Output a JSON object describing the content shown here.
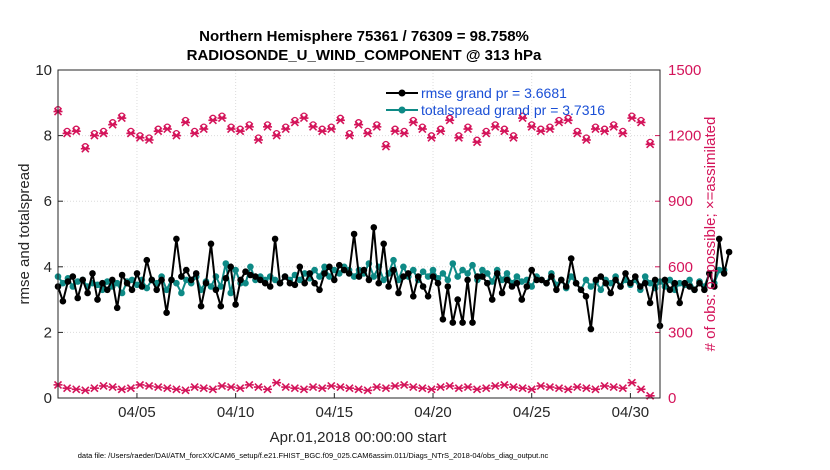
{
  "chart_data": {
    "type": "line",
    "title_line1": "Northern Hemisphere 75361 / 76309 = 98.758%",
    "title_line2": "RADIOSONDE_U_WIND_COMPONENT @ 313 hPa",
    "xlabel": "Apr.01,2018 00:00:00 start",
    "ylabel_left": "rmse and totalspread",
    "ylabel_right": "# of obs: o=possible; ×=assimilated",
    "x_ticks": [
      {
        "day": 5,
        "label": "04/05"
      },
      {
        "day": 10,
        "label": "04/10"
      },
      {
        "day": 15,
        "label": "04/15"
      },
      {
        "day": 20,
        "label": "04/20"
      },
      {
        "day": 25,
        "label": "04/25"
      },
      {
        "day": 30,
        "label": "04/30"
      }
    ],
    "xlim": [
      1,
      31.5
    ],
    "ylim_left": [
      0,
      10
    ],
    "yticks_left": [
      "0",
      "2",
      "4",
      "6",
      "8",
      "10"
    ],
    "ylim_right": [
      0,
      1500
    ],
    "yticks_right": [
      "0",
      "300",
      "600",
      "900",
      "1200",
      "1500"
    ],
    "footer": "data file: /Users/raeder/DAI/ATM_forcXX/CAM6_setup/f.e21.FHIST_BGC.f09_025.CAM6assim.011/Diags_NTrS_2018-04/obs_diag_output.nc",
    "colors": {
      "rmse": "#000000",
      "spread": "#0e8a86",
      "obs": "#d4145a",
      "legend_text": "#1a4fd6"
    },
    "series": [
      {
        "name": "rmse",
        "legend": "rmse grand pr = 3.6681",
        "color": "#000000",
        "values": [
          3.4,
          2.95,
          3.55,
          3.7,
          3.05,
          3.6,
          3.2,
          3.8,
          3.0,
          3.5,
          3.3,
          3.6,
          2.75,
          3.75,
          3.5,
          3.3,
          3.8,
          3.4,
          4.2,
          3.6,
          3.3,
          3.6,
          2.6,
          3.6,
          4.85,
          3.7,
          3.9,
          3.6,
          3.8,
          2.8,
          3.5,
          4.7,
          3.3,
          2.8,
          3.65,
          4.0,
          2.85,
          3.6,
          3.85,
          3.75,
          3.7,
          3.6,
          3.5,
          3.4,
          4.85,
          3.5,
          3.7,
          3.5,
          3.45,
          4.0,
          3.5,
          3.8,
          3.5,
          3.3,
          3.8,
          4.0,
          3.6,
          4.05,
          3.9,
          3.8,
          5.0,
          3.7,
          3.9,
          3.6,
          5.2,
          3.5,
          4.7,
          3.4,
          3.9,
          3.2,
          3.7,
          3.8,
          3.1,
          3.7,
          3.4,
          3.1,
          3.7,
          3.5,
          2.4,
          3.4,
          2.3,
          3.0,
          2.3,
          3.6,
          2.3,
          3.7,
          3.7,
          3.5,
          3.0,
          3.8,
          3.2,
          3.6,
          3.4,
          3.5,
          3.0,
          3.4,
          3.9,
          3.6,
          3.6,
          3.5,
          3.7,
          3.3,
          3.6,
          3.4,
          4.25,
          3.5,
          3.3,
          3.1,
          2.1,
          3.6,
          3.7,
          3.5,
          3.2,
          3.6,
          3.4,
          3.8,
          3.5,
          3.7,
          3.4,
          3.5,
          2.9,
          3.6,
          2.2,
          3.6,
          3.3,
          3.5,
          2.9,
          3.5,
          3.4,
          3.3,
          3.5,
          3.3,
          3.8,
          3.4,
          4.85,
          3.8,
          4.45
        ]
      },
      {
        "name": "totalspread",
        "legend": "totalspread grand pr = 3.7316",
        "color": "#0e8a86",
        "values": [
          3.7,
          3.5,
          3.65,
          3.4,
          3.55,
          3.6,
          3.4,
          3.5,
          3.45,
          3.3,
          3.55,
          3.4,
          3.5,
          3.2,
          3.55,
          3.6,
          3.45,
          3.6,
          3.35,
          3.6,
          3.5,
          3.7,
          3.3,
          3.6,
          3.5,
          3.2,
          3.6,
          3.5,
          3.7,
          3.3,
          3.55,
          3.4,
          3.7,
          3.4,
          4.1,
          3.2,
          3.9,
          3.5,
          3.5,
          4.0,
          3.6,
          3.7,
          3.6,
          3.7,
          3.6,
          3.5,
          3.7,
          3.6,
          3.75,
          3.6,
          3.8,
          3.65,
          3.9,
          3.7,
          4.0,
          3.7,
          3.9,
          3.8,
          4.0,
          3.9,
          3.7,
          3.9,
          3.8,
          4.1,
          3.7,
          4.0,
          3.6,
          3.8,
          4.2,
          3.6,
          4.0,
          3.7,
          3.9,
          3.6,
          3.85,
          3.7,
          3.9,
          3.65,
          3.8,
          3.6,
          4.1,
          3.7,
          3.9,
          3.8,
          4.05,
          3.6,
          3.9,
          3.8,
          3.55,
          3.9,
          3.6,
          3.8,
          3.5,
          3.7,
          3.55,
          3.6,
          3.4,
          3.7,
          3.6,
          3.5,
          3.8,
          3.45,
          3.6,
          3.35,
          3.7,
          3.5,
          3.3,
          3.6,
          3.4,
          3.55,
          3.3,
          3.6,
          3.5,
          3.7,
          3.4,
          3.6,
          3.45,
          3.6,
          3.3,
          3.7,
          3.5,
          3.35,
          3.55,
          3.4,
          3.6,
          3.3,
          3.5,
          3.45,
          3.6,
          3.3,
          3.55,
          3.4,
          3.8,
          3.5,
          3.9,
          3.9
        ]
      },
      {
        "name": "obs_possible",
        "axis": "right",
        "marker": "o",
        "color": "#d4145a",
        "values_daily": [
          1320,
          1220,
          1230,
          1150,
          1210,
          1220,
          1260,
          1290,
          1220,
          1200,
          1190,
          1230,
          1240,
          1210,
          1270,
          1220,
          1240,
          1280,
          1290,
          1240,
          1230,
          1250,
          1190,
          1250,
          1210,
          1240,
          1270,
          1290,
          1250,
          1230,
          1240,
          1280,
          1210,
          1260,
          1220,
          1250,
          1160,
          1230,
          1220,
          1270,
          1240,
          1200,
          1230,
          1280,
          1200,
          1240,
          1180,
          1220,
          1250,
          1230,
          1200,
          1290,
          1250,
          1230,
          1240,
          1270,
          1280,
          1220,
          1190,
          1240,
          1230,
          1250,
          1220,
          1290,
          1270,
          1170
        ]
      },
      {
        "name": "obs_assimilated",
        "axis": "right",
        "marker": "x",
        "color": "#d4145a",
        "values_daily": [
          1310,
          1210,
          1220,
          1140,
          1200,
          1210,
          1250,
          1280,
          1210,
          1190,
          1180,
          1220,
          1230,
          1200,
          1260,
          1210,
          1230,
          1270,
          1280,
          1230,
          1220,
          1240,
          1180,
          1240,
          1200,
          1230,
          1260,
          1280,
          1240,
          1220,
          1230,
          1270,
          1200,
          1250,
          1210,
          1240,
          1150,
          1220,
          1210,
          1260,
          1230,
          1190,
          1220,
          1270,
          1190,
          1230,
          1170,
          1210,
          1240,
          1220,
          1190,
          1280,
          1240,
          1220,
          1230,
          1260,
          1270,
          1210,
          1180,
          1230,
          1220,
          1240,
          1210,
          1280,
          1260,
          1160
        ]
      },
      {
        "name": "obs_low",
        "axis": "right",
        "marker": "x",
        "color": "#d4145a",
        "values_daily": [
          60,
          45,
          40,
          35,
          45,
          55,
          50,
          40,
          45,
          60,
          55,
          50,
          45,
          40,
          35,
          50,
          45,
          40,
          55,
          50,
          45,
          60,
          50,
          40,
          70,
          50,
          45,
          40,
          50,
          45,
          55,
          50,
          45,
          40,
          35,
          50,
          45,
          55,
          60,
          50,
          45,
          40,
          50,
          55,
          45,
          50,
          40,
          45,
          55,
          60,
          50,
          45,
          40,
          55,
          50,
          45,
          40,
          50,
          45,
          40,
          55,
          50,
          45,
          70,
          40,
          10
        ]
      }
    ]
  }
}
